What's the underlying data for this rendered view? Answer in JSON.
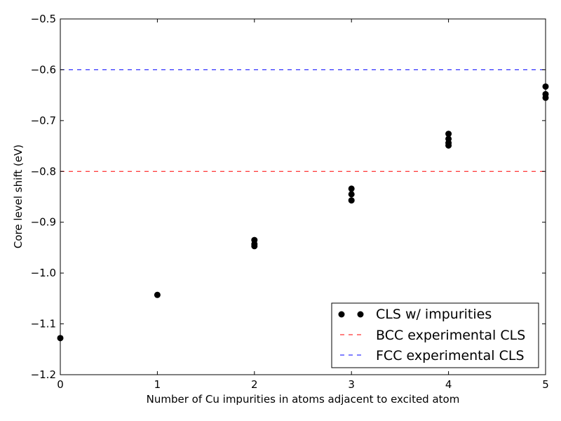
{
  "chart_data": {
    "type": "scatter",
    "title": "",
    "xlabel": "Number of Cu impurities in atoms adjacent to excited atom",
    "ylabel": "Core level shift (eV)",
    "xlim": [
      0,
      5
    ],
    "ylim": [
      -1.2,
      -0.5
    ],
    "x_ticks": [
      "0",
      "1",
      "2",
      "3",
      "4",
      "5"
    ],
    "y_ticks": [
      "−1.2",
      "−1.1",
      "−1.0",
      "−0.9",
      "−0.8",
      "−0.7",
      "−0.6",
      "−0.5"
    ],
    "grid": false,
    "legend_position": "lower-right",
    "series": [
      {
        "name": "CLS w/ impurities",
        "color": "#000000",
        "marker": "circle",
        "points": [
          {
            "x": 0,
            "y": -1.128
          },
          {
            "x": 1,
            "y": -1.043
          },
          {
            "x": 2,
            "y": -0.935
          },
          {
            "x": 2,
            "y": -0.943
          },
          {
            "x": 2,
            "y": -0.947
          },
          {
            "x": 3,
            "y": -0.834
          },
          {
            "x": 3,
            "y": -0.845
          },
          {
            "x": 3,
            "y": -0.857
          },
          {
            "x": 4,
            "y": -0.726
          },
          {
            "x": 4,
            "y": -0.736
          },
          {
            "x": 4,
            "y": -0.744
          },
          {
            "x": 4,
            "y": -0.749
          },
          {
            "x": 5,
            "y": -0.633
          },
          {
            "x": 5,
            "y": -0.648
          },
          {
            "x": 5,
            "y": -0.655
          }
        ]
      }
    ],
    "reference_lines": [
      {
        "name": "BCC experimental CLS",
        "y": -0.8,
        "color": "#ff0000",
        "style": "dashed"
      },
      {
        "name": "FCC experimental CLS",
        "y": -0.6,
        "color": "#0000ff",
        "style": "dashed"
      }
    ]
  }
}
